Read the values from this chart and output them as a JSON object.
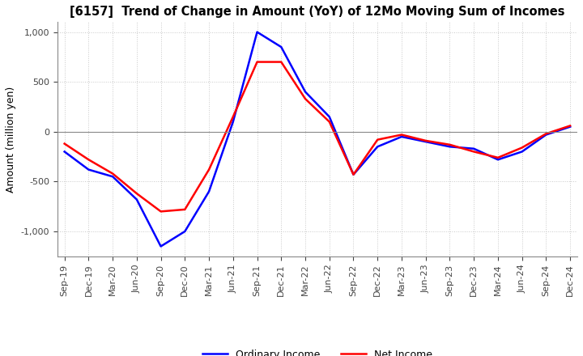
{
  "title": "[6157]  Trend of Change in Amount (YoY) of 12Mo Moving Sum of Incomes",
  "ylabel": "Amount (million yen)",
  "ylim": [
    -1250,
    1100
  ],
  "yticks": [
    -1000,
    -500,
    0,
    500,
    1000
  ],
  "background_color": "#ffffff",
  "grid_color": "#c8c8c8",
  "ordinary_income_color": "#0000ff",
  "net_income_color": "#ff0000",
  "x_labels": [
    "Sep-19",
    "Dec-19",
    "Mar-20",
    "Jun-20",
    "Sep-20",
    "Dec-20",
    "Mar-21",
    "Jun-21",
    "Sep-21",
    "Dec-21",
    "Mar-22",
    "Jun-22",
    "Sep-22",
    "Dec-22",
    "Mar-23",
    "Jun-23",
    "Sep-23",
    "Dec-23",
    "Mar-24",
    "Jun-24",
    "Sep-24",
    "Dec-24"
  ],
  "ordinary_income": [
    -200,
    -380,
    -450,
    -680,
    -1150,
    -1000,
    -600,
    100,
    1000,
    850,
    400,
    150,
    -430,
    -150,
    -50,
    -100,
    -150,
    -170,
    -280,
    -200,
    -30,
    50
  ],
  "net_income": [
    -120,
    -280,
    -420,
    -620,
    -800,
    -780,
    -380,
    150,
    700,
    700,
    330,
    100,
    -430,
    -80,
    -30,
    -90,
    -130,
    -200,
    -260,
    -160,
    -20,
    60
  ]
}
